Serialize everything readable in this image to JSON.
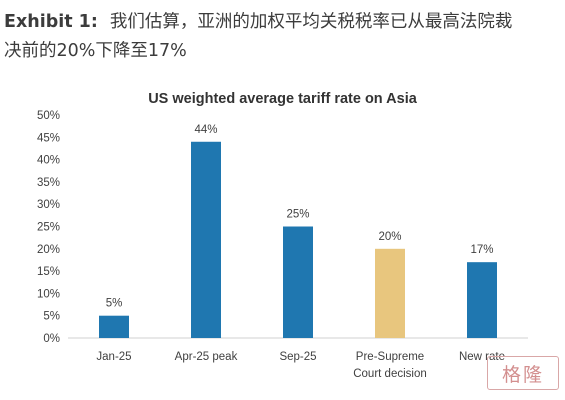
{
  "exhibit": {
    "label": "Exhibit 1:",
    "title_line1": "我们估算，亚洲的加权平均关税税率已从最高法院裁",
    "title_line2": "决前的20%下降至17%"
  },
  "chart_data": {
    "type": "bar",
    "title": "US weighted average tariff rate on Asia",
    "categories": [
      [
        "Jan-25"
      ],
      [
        "Apr-25 peak"
      ],
      [
        "Sep-25"
      ],
      [
        "Pre-Supreme",
        "Court decision"
      ],
      [
        "New rate"
      ]
    ],
    "values": [
      5,
      44,
      25,
      20,
      17
    ],
    "data_labels": [
      "5%",
      "44%",
      "25%",
      "20%",
      "17%"
    ],
    "bar_colors": [
      "#1f77b0",
      "#1f77b0",
      "#1f77b0",
      "#e8c67e",
      "#1f77b0"
    ],
    "ylim": [
      0,
      50
    ],
    "yticks": [
      0,
      5,
      10,
      15,
      20,
      25,
      30,
      35,
      40,
      45,
      50
    ],
    "ytick_labels": [
      "0%",
      "5%",
      "10%",
      "15%",
      "20%",
      "25%",
      "30%",
      "35%",
      "40%",
      "45%",
      "50%"
    ],
    "xlabel": "",
    "ylabel": "",
    "grid": false,
    "legend": false
  },
  "watermark": {
    "text": "格隆汇"
  }
}
